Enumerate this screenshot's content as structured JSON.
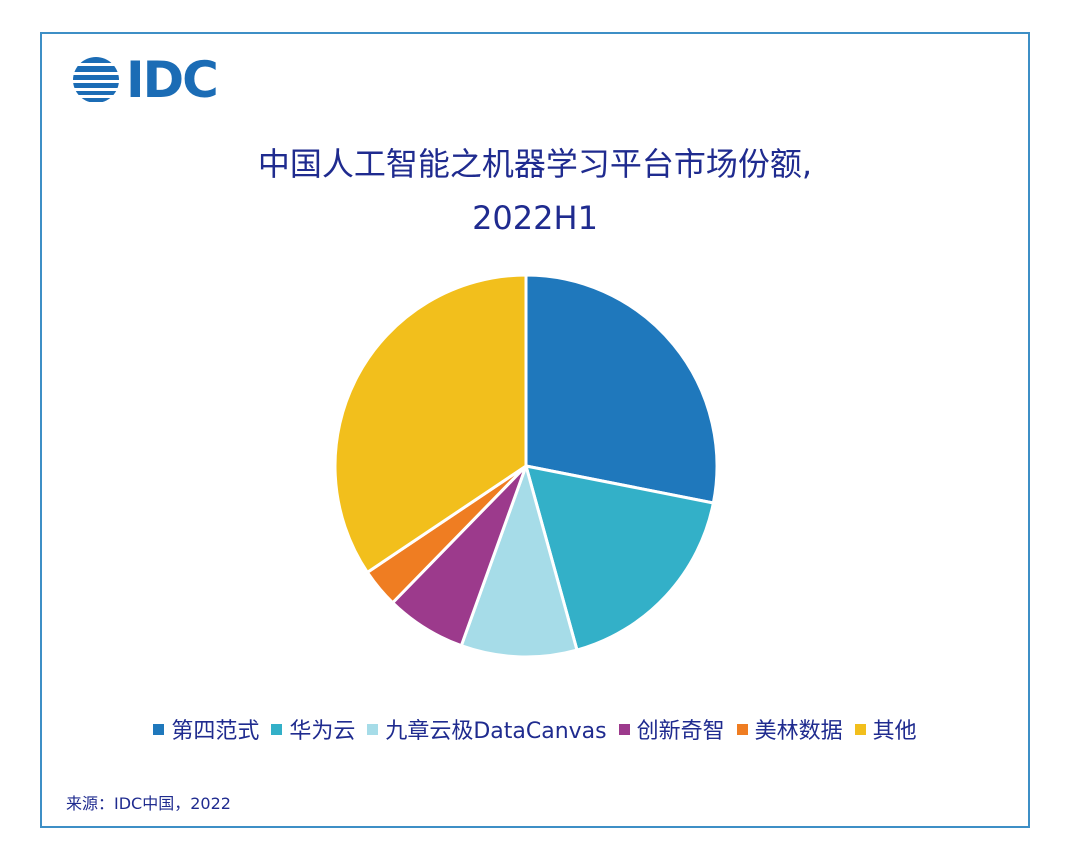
{
  "logo": {
    "text": "IDC",
    "color": "#1b6cb5"
  },
  "chart_data": {
    "type": "pie",
    "title_line1": "中国人工智能之机器学习平台市场份额,",
    "title_line2": "2022H1",
    "slices": [
      {
        "label": "第四范式",
        "value": 28.1,
        "color": "#1f78bc"
      },
      {
        "label": "华为云",
        "value": 17.6,
        "color": "#33b0c8"
      },
      {
        "label": "九章云极DataCanvas",
        "value": 9.8,
        "color": "#a6dce8"
      },
      {
        "label": "创新奇智",
        "value": 6.8,
        "color": "#9c3a8c"
      },
      {
        "label": "美林数据",
        "value": 3.3,
        "color": "#ef7d22"
      },
      {
        "label": "其他",
        "value": 34.4,
        "color": "#f2bf1c"
      }
    ],
    "legend_position": "bottom"
  },
  "source": "来源：IDC中国，2022"
}
